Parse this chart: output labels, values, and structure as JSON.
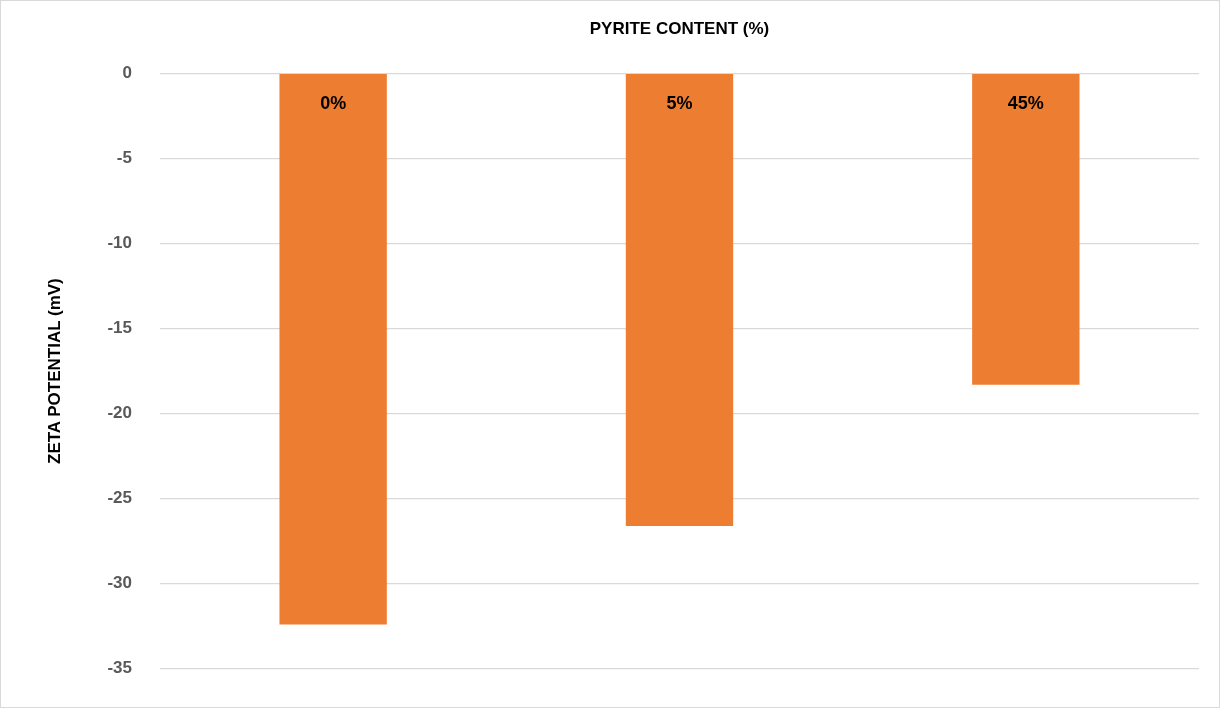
{
  "chart_data": {
    "type": "bar",
    "xlabel": "PYRITE CONTENT (%)",
    "ylabel": "ZETA POTENTIAL (mV)",
    "categories": [
      "0%",
      "5%",
      "45%"
    ],
    "values": [
      -32.4,
      -26.6,
      -18.3
    ],
    "color": "#ed7d31",
    "ylim": [
      -35,
      0
    ],
    "yticks": [
      0,
      -5,
      -10,
      -15,
      -20,
      -25,
      -30,
      -35
    ],
    "grid": "y",
    "legend": false
  }
}
